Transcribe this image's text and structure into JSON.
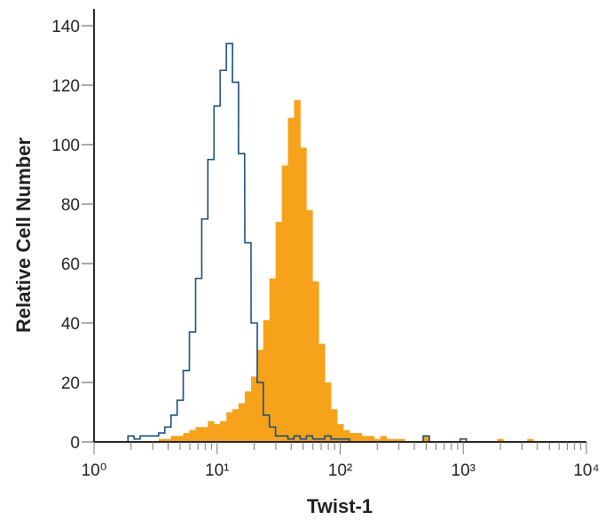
{
  "chart_data": {
    "type": "histogram",
    "title": "",
    "xlabel": "Twist-1",
    "ylabel": "Relative Cell Number",
    "xscale": "log",
    "xlim": [
      1,
      10000
    ],
    "ylim": [
      0,
      140
    ],
    "yticks": [
      0,
      20,
      40,
      60,
      80,
      100,
      120,
      140
    ],
    "ytick_labels": [
      "0",
      "20",
      "40",
      "60",
      "80",
      "100",
      "120",
      "140"
    ],
    "xticks": [
      1,
      10,
      100,
      1000,
      10000
    ],
    "xtick_labels": [
      "10⁰",
      "10¹",
      "10²",
      "10³",
      "10⁴"
    ],
    "grid": false,
    "legend": "none",
    "series": [
      {
        "style": "filled",
        "color": "#F7A21B",
        "x": [
          3.55,
          3.98,
          4.47,
          5.01,
          5.62,
          6.31,
          7.08,
          7.94,
          8.91,
          10.0,
          11.2,
          12.6,
          14.1,
          15.8,
          17.8,
          20.0,
          22.4,
          25.1,
          28.2,
          31.6,
          35.5,
          39.8,
          44.7,
          50.1,
          56.2,
          63.1,
          70.8,
          79.4,
          89.1,
          100,
          112,
          126,
          141,
          158,
          178,
          200,
          224,
          251,
          282,
          316,
          500,
          2000,
          3500
        ],
        "values": [
          1,
          1,
          2,
          2,
          3,
          4,
          5,
          5,
          7,
          6,
          7,
          10,
          11,
          13,
          17,
          22,
          31,
          41,
          55,
          74,
          93,
          109,
          115,
          99,
          78,
          54,
          33,
          20,
          11,
          6,
          4,
          3,
          3,
          2,
          2,
          1,
          2,
          1,
          1,
          1,
          2,
          1,
          1
        ]
      },
      {
        "style": "outline",
        "color": "#1B4F7A",
        "x": [
          2.0,
          2.24,
          2.51,
          2.82,
          3.16,
          3.55,
          3.98,
          4.47,
          5.01,
          5.62,
          6.31,
          7.08,
          7.94,
          8.91,
          10.0,
          11.2,
          12.6,
          14.1,
          15.8,
          17.8,
          20.0,
          22.4,
          25.1,
          28.2,
          31.6,
          35.5,
          39.8,
          44.7,
          50.1,
          56.2,
          63.1,
          70.8,
          79.4,
          89.1,
          100,
          112,
          500,
          1000
        ],
        "values": [
          2,
          1,
          2,
          2,
          2,
          3,
          5,
          9,
          14,
          24,
          37,
          55,
          75,
          95,
          113,
          125,
          134,
          121,
          97,
          67,
          40,
          20,
          9,
          5,
          2,
          2,
          1,
          2,
          1,
          2,
          1,
          1,
          2,
          1,
          1,
          1,
          2,
          1
        ]
      }
    ]
  }
}
